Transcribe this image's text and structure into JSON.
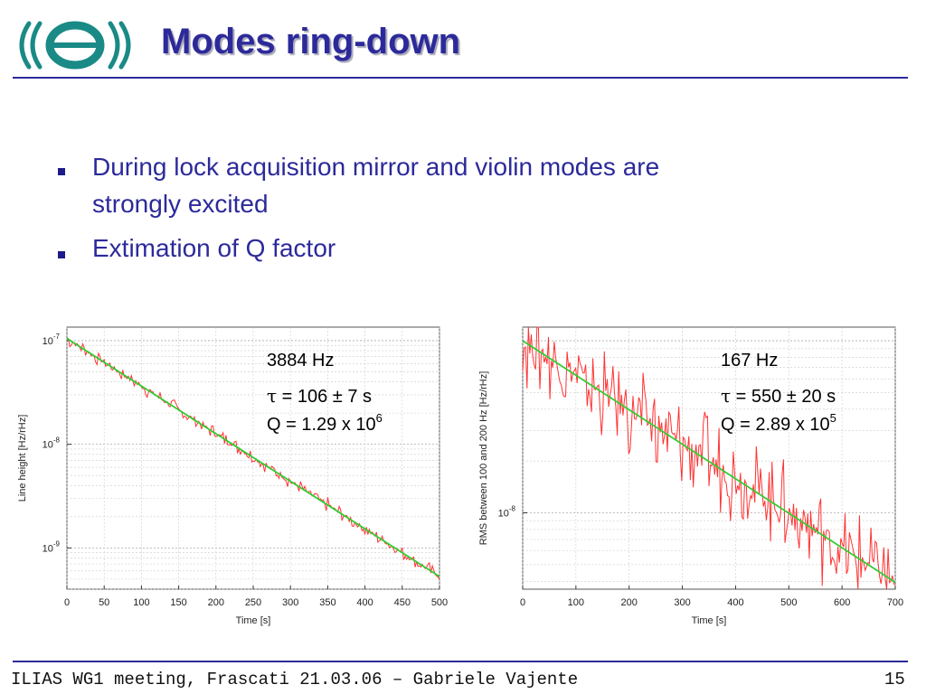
{
  "slide": {
    "title": "Modes ring-down",
    "logo_name": "virgo-logo",
    "bullets": [
      {
        "line1": "During lock acquisition mirror and violin modes are",
        "line2": "strongly excited"
      },
      {
        "line1": "Extimation of Q factor"
      }
    ],
    "footer": "ILIAS WG1 meeting, Frascati 21.03.06 – Gabriele Vajente",
    "page_number": "15"
  },
  "colors": {
    "accent": "#2c2a9a",
    "data_line": "#ff3333",
    "fit_line": "#33cc33"
  },
  "chart_data": [
    {
      "type": "line",
      "xlabel": "Time [s]",
      "ylabel": "Line height [Hz/rHz]",
      "xlim": [
        0,
        500
      ],
      "ylim": [
        4e-10,
        1.35e-07
      ],
      "yscale": "log",
      "grid": true,
      "xticks": [
        "0",
        "50",
        "100",
        "150",
        "200",
        "250",
        "300",
        "350",
        "400",
        "450",
        "500"
      ],
      "ytick_values": [
        1e-07,
        1e-08,
        1e-09
      ],
      "ytick_base": [
        "10",
        "10",
        "10"
      ],
      "ytick_exp": [
        "-7",
        "-8",
        "-9"
      ],
      "fit": {
        "x": [
          0,
          500
        ],
        "y": [
          1.05e-07,
          5.3e-10
        ]
      },
      "noise_amplitude": 0.08,
      "annotations": {
        "freq": "3884 Hz",
        "tau_symbol": "τ",
        "tau_text": " = 106 ± 7 s",
        "q_text": "Q = 1.29 x 10",
        "q_exp": "6"
      }
    },
    {
      "type": "line",
      "xlabel": "Time [s]",
      "ylabel": "RMS between 100 and 200 Hz  [Hz/rHz]",
      "xlim": [
        0,
        700
      ],
      "ylim": [
        3.6e-09,
        1.2e-07
      ],
      "yscale": "log",
      "grid": true,
      "xticks": [
        "0",
        "100",
        "200",
        "300",
        "400",
        "500",
        "600",
        "700"
      ],
      "ytick_values": [
        1e-08
      ],
      "ytick_base": [
        "10"
      ],
      "ytick_exp": [
        "-8"
      ],
      "fit": {
        "x": [
          0,
          700
        ],
        "y": [
          1e-07,
          3.95e-09
        ]
      },
      "noise_amplitude": 0.3,
      "annotations": {
        "freq": "167 Hz",
        "tau_symbol": "τ",
        "tau_text": " = 550 ± 20 s",
        "q_text": "Q = 2.89 x 10",
        "q_exp": "5"
      }
    }
  ]
}
